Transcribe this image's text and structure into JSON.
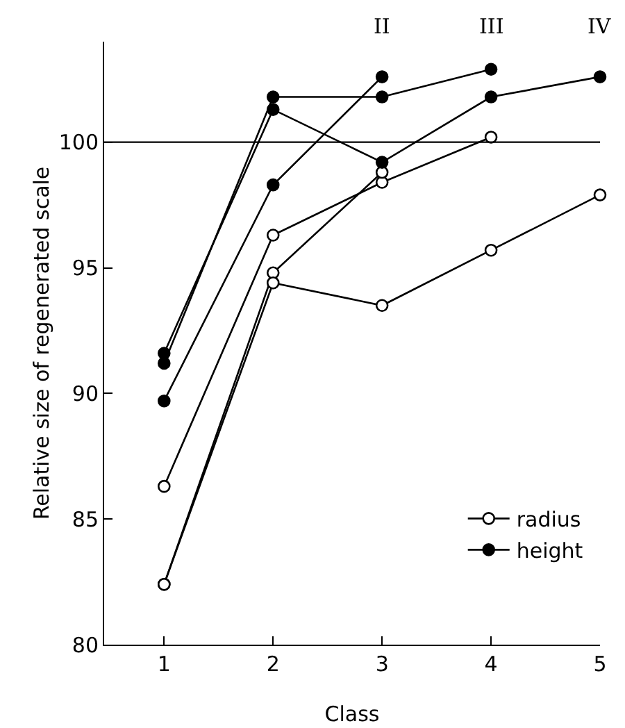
{
  "chart_data": {
    "type": "line",
    "xlabel": "Class",
    "ylabel": "Relative size of regenerated scale",
    "x": [
      1,
      2,
      3,
      4,
      5
    ],
    "series": [
      {
        "name": "radius",
        "color": "#000000",
        "marker": "circle-open",
        "values": [
          86.3,
          96.3,
          98.4,
          100.2,
          null
        ]
      },
      {
        "color": "#000000",
        "marker": "circle-open",
        "values": [
          82.4,
          94.8,
          98.8,
          null,
          null
        ]
      },
      {
        "color": "#000000",
        "marker": "circle-open",
        "values": [
          82.4,
          94.4,
          93.5,
          95.7,
          97.9
        ]
      },
      {
        "name": "height",
        "color": "#000000",
        "marker": "circle",
        "values": [
          89.7,
          98.3,
          102.6,
          null,
          null
        ]
      },
      {
        "color": "#000000",
        "marker": "circle",
        "values": [
          91.2,
          101.8,
          101.8,
          102.9,
          null
        ]
      },
      {
        "color": "#000000",
        "marker": "circle",
        "values": [
          91.6,
          101.3,
          99.2,
          101.8,
          102.6
        ]
      }
    ],
    "annotations": [
      "II",
      "III",
      "IV"
    ],
    "ref_lines": [
      {
        "axis": "y",
        "value": 100,
        "color": "#000000"
      }
    ],
    "xlim": [
      0.45,
      5
    ],
    "xticks": [
      1,
      2,
      3,
      4,
      5
    ],
    "ylim": [
      80,
      104
    ],
    "yticks": [
      80,
      85,
      90,
      95,
      100
    ],
    "grid": false,
    "legend": "bottom right",
    "line_style": "solid"
  }
}
